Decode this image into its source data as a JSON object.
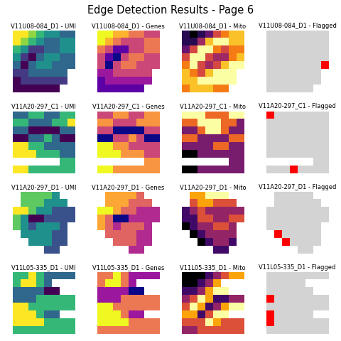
{
  "title": "Edge Detection Results - Page 6",
  "chart_data": [
    {
      "type": "heatmap",
      "title": "V11U08-084_D1 - UMI",
      "color": "viridis",
      "tick_labels": false,
      "cells": [
        [
          8,
          8,
          7,
          6,
          5,
          5,
          4,
          4
        ],
        [
          8,
          7,
          6,
          5,
          4,
          4,
          5,
          5
        ],
        [
          6,
          5,
          3,
          3,
          4,
          4,
          5,
          5
        ],
        [
          5,
          3,
          2,
          4,
          5,
          5,
          4,
          4
        ],
        [
          4,
          2,
          4,
          5,
          5,
          4,
          4,
          4
        ],
        [
          3,
          3,
          4,
          4,
          4,
          4,
          4,
          null
        ],
        [
          2,
          3,
          3,
          3,
          3,
          3,
          3,
          null
        ],
        [
          2,
          2,
          2,
          2,
          2,
          2,
          null,
          null
        ]
      ]
    },
    {
      "type": "heatmap",
      "title": "V11U08-084_D1 - Genes",
      "color": "plasma",
      "tick_labels": false,
      "cells": [
        [
          9,
          9,
          8,
          8,
          7,
          7,
          6,
          6
        ],
        [
          9,
          8,
          7,
          6,
          6,
          6,
          7,
          7
        ],
        [
          7,
          6,
          4,
          4,
          6,
          6,
          7,
          7
        ],
        [
          6,
          4,
          3,
          6,
          7,
          7,
          6,
          6
        ],
        [
          6,
          3,
          6,
          7,
          7,
          6,
          6,
          6
        ],
        [
          5,
          5,
          6,
          6,
          6,
          6,
          6,
          null
        ],
        [
          4,
          5,
          5,
          5,
          5,
          5,
          5,
          null
        ],
        [
          4,
          4,
          4,
          4,
          4,
          4,
          null,
          null
        ]
      ]
    },
    {
      "type": "heatmap",
      "title": "V11U08-084_D1 - Mito",
      "color": "inferno",
      "tick_labels": false,
      "cells": [
        [
          2,
          1,
          2,
          3,
          5,
          6,
          7,
          7
        ],
        [
          2,
          2,
          4,
          7,
          8,
          8,
          7,
          7
        ],
        [
          3,
          5,
          8,
          8,
          6,
          5,
          6,
          6
        ],
        [
          5,
          8,
          8,
          5,
          4,
          4,
          6,
          7
        ],
        [
          6,
          8,
          5,
          4,
          5,
          7,
          8,
          8
        ],
        [
          7,
          6,
          5,
          7,
          8,
          8,
          8,
          null
        ],
        [
          7,
          7,
          8,
          8,
          8,
          8,
          8,
          null
        ],
        [
          6,
          7,
          7,
          7,
          6,
          6,
          null,
          null
        ]
      ]
    },
    {
      "type": "heatmap",
      "title": "V11U08-084_D1 - Flagged",
      "colors": [
        "#d3d3d3",
        "#ff0000"
      ],
      "tick_labels": false,
      "cells": [
        [
          0,
          0,
          0,
          0,
          0,
          0,
          0,
          0
        ],
        [
          0,
          0,
          0,
          0,
          0,
          0,
          0,
          0
        ],
        [
          0,
          0,
          0,
          0,
          0,
          0,
          0,
          0
        ],
        [
          0,
          0,
          0,
          0,
          0,
          0,
          0,
          0
        ],
        [
          0,
          0,
          0,
          0,
          0,
          0,
          0,
          1
        ],
        [
          0,
          0,
          0,
          0,
          0,
          0,
          0,
          null
        ],
        [
          0,
          0,
          0,
          0,
          0,
          0,
          0,
          null
        ],
        [
          0,
          0,
          0,
          0,
          0,
          0,
          null,
          null
        ]
      ]
    },
    {
      "type": "heatmap",
      "title": "V11A20-297_C1 - UMI",
      "color": "viridis",
      "tick_labels": false,
      "cells": [
        [
          4,
          4,
          5,
          5,
          4,
          4,
          5,
          5
        ],
        [
          5,
          5,
          4,
          4,
          4,
          5,
          5,
          6
        ],
        [
          4,
          4,
          3,
          3,
          3,
          3,
          4,
          4
        ],
        [
          3,
          3,
          4,
          4,
          5,
          4,
          3,
          3
        ],
        [
          6,
          6,
          5,
          5,
          4,
          4,
          4,
          4
        ],
        [
          6,
          6,
          6,
          5,
          5,
          5,
          4,
          4
        ],
        [
          null,
          null,
          null,
          null,
          null,
          null,
          5,
          5
        ],
        [
          6,
          6,
          5,
          5,
          5,
          5,
          5,
          5
        ]
      ]
    },
    {
      "type": "heatmap",
      "title": "V11A20-297_C1 - Genes",
      "color": "plasma",
      "tick_labels": false,
      "cells": [
        [
          6,
          6,
          7,
          7,
          6,
          6,
          7,
          7
        ],
        [
          7,
          7,
          6,
          6,
          6,
          7,
          7,
          7
        ],
        [
          6,
          6,
          4,
          4,
          4,
          4,
          6,
          6
        ],
        [
          4,
          4,
          6,
          6,
          7,
          6,
          4,
          4
        ],
        [
          8,
          8,
          7,
          7,
          6,
          6,
          6,
          6
        ],
        [
          8,
          8,
          8,
          7,
          7,
          7,
          6,
          6
        ],
        [
          null,
          null,
          null,
          null,
          null,
          null,
          7,
          7
        ],
        [
          8,
          8,
          7,
          7,
          7,
          7,
          7,
          7
        ]
      ]
    },
    {
      "type": "heatmap",
      "title": "V11A20-297_C1 - Mito",
      "color": "inferno",
      "tick_labels": false,
      "cells": [
        [
          5,
          5,
          5,
          4,
          4,
          4,
          5,
          5
        ],
        [
          4,
          4,
          5,
          5,
          5,
          4,
          4,
          3
        ],
        [
          3,
          3,
          4,
          5,
          5,
          4,
          3,
          3
        ],
        [
          4,
          4,
          3,
          3,
          3,
          3,
          4,
          4
        ],
        [
          3,
          3,
          3,
          3,
          4,
          4,
          3,
          3
        ],
        [
          2,
          2,
          3,
          3,
          3,
          3,
          3,
          3
        ],
        [
          null,
          null,
          null,
          null,
          null,
          null,
          3,
          3
        ],
        [
          2,
          2,
          3,
          3,
          3,
          3,
          3,
          3
        ]
      ]
    },
    {
      "type": "heatmap",
      "title": "V11A20-297_C1 - Flagged",
      "colors": [
        "#d3d3d3",
        "#ff0000"
      ],
      "tick_labels": false,
      "cells": [
        [
          1,
          0,
          0,
          0,
          0,
          0,
          0,
          0
        ],
        [
          0,
          0,
          0,
          0,
          0,
          0,
          0,
          0
        ],
        [
          0,
          0,
          0,
          0,
          0,
          0,
          0,
          0
        ],
        [
          0,
          0,
          0,
          0,
          0,
          0,
          0,
          0
        ],
        [
          0,
          0,
          0,
          0,
          0,
          0,
          0,
          0
        ],
        [
          0,
          0,
          0,
          0,
          0,
          0,
          0,
          0
        ],
        [
          null,
          null,
          null,
          null,
          null,
          null,
          0,
          0
        ],
        [
          0,
          0,
          0,
          1,
          0,
          0,
          0,
          0
        ]
      ]
    },
    {
      "type": "heatmap",
      "title": "V11A20-297_D1 - UMI",
      "color": "viridis",
      "tick_labels": false,
      "cells": [
        [
          null,
          5,
          5,
          5,
          5,
          4,
          null,
          null
        ],
        [
          null,
          5,
          5,
          5,
          4,
          4,
          4,
          null
        ],
        [
          6,
          6,
          5,
          4,
          4,
          3,
          3,
          3
        ],
        [
          5,
          4,
          2,
          2,
          3,
          3,
          3,
          3
        ],
        [
          5,
          4,
          3,
          4,
          4,
          4,
          3,
          null
        ],
        [
          null,
          4,
          4,
          4,
          4,
          3,
          3,
          null
        ],
        [
          null,
          null,
          4,
          4,
          4,
          3,
          3,
          null
        ],
        [
          null,
          null,
          null,
          null,
          3,
          3,
          null,
          null
        ]
      ]
    },
    {
      "type": "heatmap",
      "title": "V11A20-297_D1 - Genes",
      "color": "plasma",
      "tick_labels": false,
      "cells": [
        [
          null,
          7,
          7,
          7,
          7,
          6,
          null,
          null
        ],
        [
          null,
          7,
          7,
          7,
          6,
          6,
          6,
          null
        ],
        [
          8,
          8,
          7,
          6,
          6,
          5,
          5,
          5
        ],
        [
          7,
          6,
          3,
          3,
          5,
          5,
          5,
          5
        ],
        [
          7,
          6,
          5,
          6,
          6,
          6,
          5,
          null
        ],
        [
          null,
          6,
          6,
          6,
          6,
          5,
          5,
          null
        ],
        [
          null,
          null,
          6,
          6,
          6,
          5,
          5,
          null
        ],
        [
          null,
          null,
          null,
          null,
          5,
          5,
          null,
          null
        ]
      ]
    },
    {
      "type": "heatmap",
      "title": "V11A20-297_D1 - Mito",
      "color": "inferno",
      "tick_labels": false,
      "cells": [
        [
          null,
          6,
          6,
          7,
          7,
          7,
          null,
          null
        ],
        [
          null,
          5,
          6,
          6,
          5,
          5,
          5,
          null
        ],
        [
          3,
          4,
          5,
          4,
          4,
          4,
          4,
          4
        ],
        [
          3,
          3,
          5,
          5,
          4,
          4,
          5,
          5
        ],
        [
          2,
          3,
          4,
          4,
          5,
          5,
          4,
          null
        ],
        [
          null,
          2,
          3,
          4,
          4,
          4,
          4,
          null
        ],
        [
          null,
          null,
          2,
          3,
          4,
          4,
          3,
          null
        ],
        [
          null,
          null,
          null,
          null,
          3,
          3,
          null,
          null
        ]
      ]
    },
    {
      "type": "heatmap",
      "title": "V11A20-297_D1 - Flagged",
      "colors": [
        "#d3d3d3",
        "#ff0000"
      ],
      "tick_labels": false,
      "cells": [
        [
          null,
          0,
          0,
          0,
          0,
          0,
          null,
          null
        ],
        [
          null,
          0,
          0,
          0,
          0,
          0,
          0,
          null
        ],
        [
          0,
          0,
          0,
          0,
          0,
          0,
          0,
          0
        ],
        [
          0,
          0,
          0,
          0,
          0,
          0,
          0,
          0
        ],
        [
          0,
          0,
          0,
          0,
          0,
          0,
          0,
          null
        ],
        [
          null,
          1,
          0,
          0,
          0,
          0,
          0,
          null
        ],
        [
          null,
          null,
          1,
          0,
          0,
          0,
          0,
          null
        ],
        [
          null,
          null,
          null,
          null,
          0,
          0,
          null,
          null
        ]
      ]
    },
    {
      "type": "heatmap",
      "title": "V11L05-335_D1 - UMI",
      "color": "viridis",
      "tick_labels": false,
      "cells": [
        [
          5,
          5,
          6,
          5,
          4,
          4,
          4,
          4
        ],
        [
          5,
          6,
          6,
          5,
          4,
          null,
          null,
          null
        ],
        [
          4,
          4,
          4,
          4,
          3,
          3,
          null,
          null
        ],
        [
          4,
          4,
          4,
          5,
          5,
          5,
          5,
          5
        ],
        [
          6,
          6,
          5,
          5,
          5,
          5,
          5,
          5
        ],
        [
          6,
          6,
          6,
          5,
          4,
          4,
          null,
          null
        ],
        [
          6,
          6,
          6,
          6,
          5,
          5,
          5,
          5
        ],
        [
          5,
          5,
          5,
          5,
          5,
          5,
          5,
          5
        ]
      ]
    },
    {
      "type": "heatmap",
      "title": "V11L05-335_D1 - Genes",
      "color": "plasma",
      "tick_labels": false,
      "cells": [
        [
          7,
          7,
          8,
          7,
          6,
          6,
          6,
          6
        ],
        [
          7,
          8,
          8,
          7,
          6,
          null,
          null,
          null
        ],
        [
          6,
          6,
          6,
          6,
          5,
          5,
          null,
          null
        ],
        [
          6,
          6,
          6,
          7,
          7,
          7,
          7,
          7
        ],
        [
          8,
          8,
          7,
          7,
          7,
          7,
          7,
          7
        ],
        [
          8,
          8,
          8,
          7,
          6,
          6,
          null,
          null
        ],
        [
          8,
          8,
          8,
          8,
          7,
          7,
          7,
          7
        ],
        [
          7,
          7,
          7,
          7,
          7,
          7,
          7,
          7
        ]
      ]
    },
    {
      "type": "heatmap",
      "title": "V11L05-335_D1 - Mito",
      "color": "inferno",
      "tick_labels": false,
      "cells": [
        [
          2,
          2,
          2,
          3,
          4,
          5,
          6,
          6
        ],
        [
          2,
          2,
          3,
          4,
          6,
          null,
          null,
          null
        ],
        [
          3,
          3,
          4,
          6,
          7,
          7,
          null,
          null
        ],
        [
          4,
          5,
          7,
          6,
          3,
          3,
          4,
          4
        ],
        [
          5,
          7,
          6,
          3,
          4,
          6,
          7,
          7
        ],
        [
          6,
          6,
          3,
          5,
          7,
          7,
          null,
          null
        ],
        [
          5,
          5,
          5,
          7,
          6,
          5,
          5,
          5
        ],
        [
          4,
          4,
          5,
          5,
          5,
          5,
          5,
          5
        ]
      ]
    },
    {
      "type": "heatmap",
      "title": "V11L05-335_D1 - Flagged",
      "colors": [
        "#d3d3d3",
        "#ff0000"
      ],
      "tick_labels": false,
      "cells": [
        [
          0,
          0,
          0,
          0,
          0,
          0,
          0,
          0
        ],
        [
          0,
          0,
          0,
          0,
          0,
          null,
          null,
          null
        ],
        [
          0,
          0,
          0,
          0,
          0,
          0,
          null,
          null
        ],
        [
          1,
          0,
          0,
          0,
          0,
          0,
          0,
          0
        ],
        [
          0,
          0,
          0,
          0,
          0,
          0,
          0,
          0
        ],
        [
          1,
          0,
          0,
          0,
          0,
          0,
          null,
          null
        ],
        [
          1,
          0,
          0,
          0,
          0,
          0,
          0,
          0
        ],
        [
          0,
          0,
          0,
          0,
          0,
          0,
          0,
          0
        ]
      ]
    }
  ]
}
